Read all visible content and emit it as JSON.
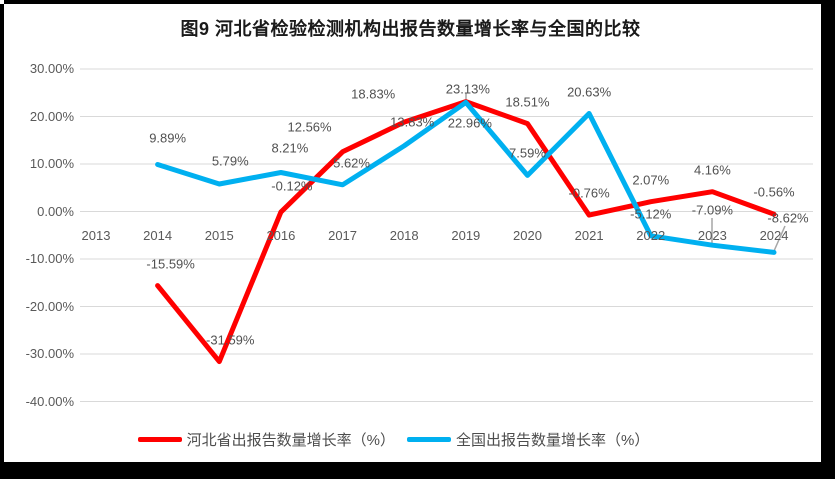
{
  "page": {
    "background": "#FFFFFF",
    "frame_color": "#000000"
  },
  "chart_data": {
    "type": "line",
    "title": "图9 河北省检验检测机构出报告数量增长率与全国的比较",
    "categories": [
      "2013",
      "2014",
      "2015",
      "2016",
      "2017",
      "2018",
      "2019",
      "2020",
      "2021",
      "2022",
      "2023",
      "2024"
    ],
    "y_axis": {
      "ticks": [
        {
          "label": "30.00%",
          "value": 30
        },
        {
          "label": "20.00%",
          "value": 20
        },
        {
          "label": "10.00%",
          "value": 10
        },
        {
          "label": "0.00%",
          "value": 0
        },
        {
          "label": "-10.00%",
          "value": -10
        },
        {
          "label": "-20.00%",
          "value": -20
        },
        {
          "label": "-30.00%",
          "value": -30
        },
        {
          "label": "-40.00%",
          "value": -40
        }
      ],
      "ylim": [
        -40,
        30
      ]
    },
    "grid": true,
    "legend_position": "bottom",
    "series": [
      {
        "name": "河北省出报告数量增长率（%）",
        "color": "#FF0000",
        "values": [
          null,
          -15.59,
          -31.59,
          -0.12,
          12.56,
          18.83,
          23.13,
          18.51,
          -0.76,
          2.07,
          4.16,
          -0.56
        ],
        "labels": [
          "",
          "-15.59%",
          "-31.59%",
          "-0.12%",
          "12.56%",
          "18.83%",
          "23.13%",
          "18.51%",
          "-0.76%",
          "2.07%",
          "4.16%",
          "-0.56%"
        ]
      },
      {
        "name": "全国出报告数量增长率（%）",
        "color": "#00B0F0",
        "values": [
          null,
          9.89,
          5.79,
          8.21,
          5.62,
          13.83,
          22.96,
          7.59,
          20.63,
          -5.12,
          -7.09,
          -8.62
        ],
        "labels": [
          "",
          "9.89%",
          "5.79%",
          "8.21%",
          "5.62%",
          "13.83%",
          "22.96%",
          "7.59%",
          "20.63%",
          "-5.12%",
          "-7.09%",
          "-8.62%"
        ]
      }
    ],
    "gridline_color": "#D9D9D9",
    "axis_text_color": "#595959",
    "label_text_color": "#515151",
    "leader_line_color": "#A6A6A6"
  }
}
